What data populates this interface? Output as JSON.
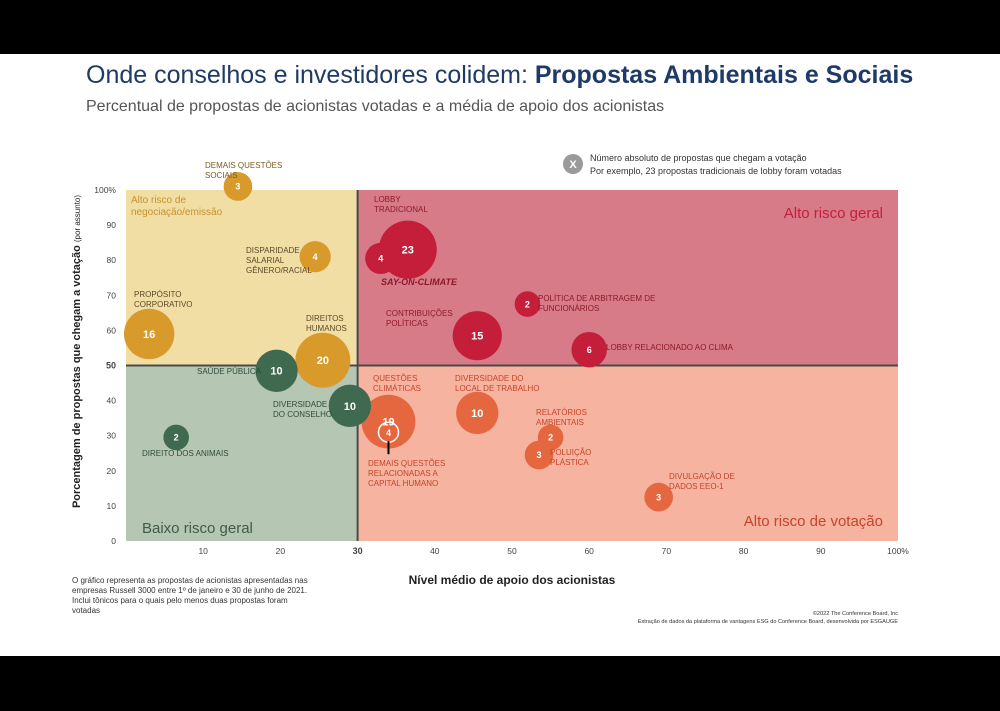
{
  "title_part1": "Onde conselhos e investidores colidem: ",
  "title_part2": "Propostas Ambientais e Sociais",
  "subtitle": "Percentual de propostas de acionistas votadas e a média de apoio dos acionistas",
  "legend": {
    "symbol": "X",
    "line1": "Número absoluto de propostas que chegam a votação",
    "line2": "Por exemplo, 23 propostas tradicionais de lobby foram votadas"
  },
  "footnote": "O gráfico representa as propostas de acionistas apresentadas nas empresas Russell 3000 entre 1º de janeiro e 30 de junho de 2021. Inclui tônicos para o quais pelo menos duas propostas foram votadas",
  "credits": {
    "line1": "©2022 The Conference Board, Inc",
    "line2": "Extração de dados da plataforma de vantagens ESG do Conference Board, desenvolvida por ESGAUGE"
  },
  "colors": {
    "top_left": "#f1dea4",
    "top_right": "#d87b89",
    "bottom_left": "#b5c6b3",
    "bottom_right": "#f6b39f",
    "gold": "#d89a2b",
    "crimson": "#c41e3a",
    "green": "#3f6a50",
    "orange": "#e4673f",
    "divider": "#4a4a4a"
  },
  "chart_data": {
    "type": "scatter",
    "xlabel": "Nível médio de apoio dos acionistas",
    "ylabel": "Porcentagem de propostas que chegam a votação",
    "ylabel_suffix": "(por assunto)",
    "xlim": [
      0,
      100
    ],
    "ylim": [
      0,
      100
    ],
    "x_ticks": [
      "10",
      "20",
      "30",
      "40",
      "50",
      "60",
      "70",
      "80",
      "90",
      "100%"
    ],
    "y_ticks": [
      "0",
      "10",
      "20",
      "30",
      "40",
      "50",
      "60",
      "70",
      "80",
      "90",
      "100%"
    ],
    "x_divider": 30,
    "y_divider": 50,
    "quadrant_labels": {
      "top_left": "Alto risco de negociação/emissão",
      "top_right": "Alto risco geral",
      "bottom_left": "Baixo risco geral",
      "bottom_right": "Alto risco de votação"
    },
    "points": [
      {
        "label": "DEMAIS QUESTÕES SOCIAIS",
        "x": 14.5,
        "y": 101,
        "count": 3,
        "group": "gold"
      },
      {
        "label": "DISPARIDADE SALARIAL GÊNERO/RACIAL",
        "x": 24.5,
        "y": 81,
        "count": 4,
        "group": "gold"
      },
      {
        "label": "PROPÓSITO CORPORATIVO",
        "x": 3,
        "y": 59,
        "count": 16,
        "group": "gold"
      },
      {
        "label": "DIREITOS HUMANOS",
        "x": 25.5,
        "y": 51.5,
        "count": 20,
        "group": "gold"
      },
      {
        "label": "LOBBY TRADICIONAL",
        "x": 36.5,
        "y": 83,
        "count": 23,
        "group": "crimson"
      },
      {
        "label": "SAY-ON-CLIMATE",
        "x": 33,
        "y": 80.5,
        "count": 4,
        "group": "crimson"
      },
      {
        "label": "POLÍTICA DE ARBITRAGEM DE FUNCIONÁRIOS",
        "x": 52,
        "y": 67.5,
        "count": 2,
        "group": "crimson"
      },
      {
        "label": "CONTRIBUIÇÕES POLÍTICAS",
        "x": 45.5,
        "y": 58.5,
        "count": 15,
        "group": "crimson"
      },
      {
        "label": "LOBBY RELACIONADO AO CLIMA",
        "x": 60,
        "y": 54.5,
        "count": 6,
        "group": "crimson"
      },
      {
        "label": "SAÚDE PÚBLICA",
        "x": 19.5,
        "y": 48.5,
        "count": 10,
        "group": "green"
      },
      {
        "label": "DIVERSIDADE DO CONSELHO",
        "x": 29,
        "y": 38.5,
        "count": 10,
        "group": "green"
      },
      {
        "label": "DIREITO DOS ANIMAIS",
        "x": 6.5,
        "y": 29.5,
        "count": 2,
        "group": "green"
      },
      {
        "label": "QUESTÕES CLIMÁTICAS",
        "x": 34,
        "y": 34,
        "count": 19,
        "group": "orange"
      },
      {
        "label": "DEMAIS QUESTÕES RELACIONADAS A CAPITAL HUMANO",
        "x": 34,
        "y": 31,
        "count": 4,
        "group": "orange"
      },
      {
        "label": "DIVERSIDADE DO LOCAL DE TRABALHO",
        "x": 45.5,
        "y": 36.5,
        "count": 10,
        "group": "orange"
      },
      {
        "label": "RELATÓRIOS AMBIENTAIS",
        "x": 55,
        "y": 29.5,
        "count": 2,
        "group": "orange"
      },
      {
        "label": "POLUIÇÃO PLÁSTICA",
        "x": 53.5,
        "y": 24.5,
        "count": 3,
        "group": "orange"
      },
      {
        "label": "DIVULGAÇÃO DE DADOS EEO-1",
        "x": 69,
        "y": 12.5,
        "count": 3,
        "group": "orange"
      }
    ]
  }
}
